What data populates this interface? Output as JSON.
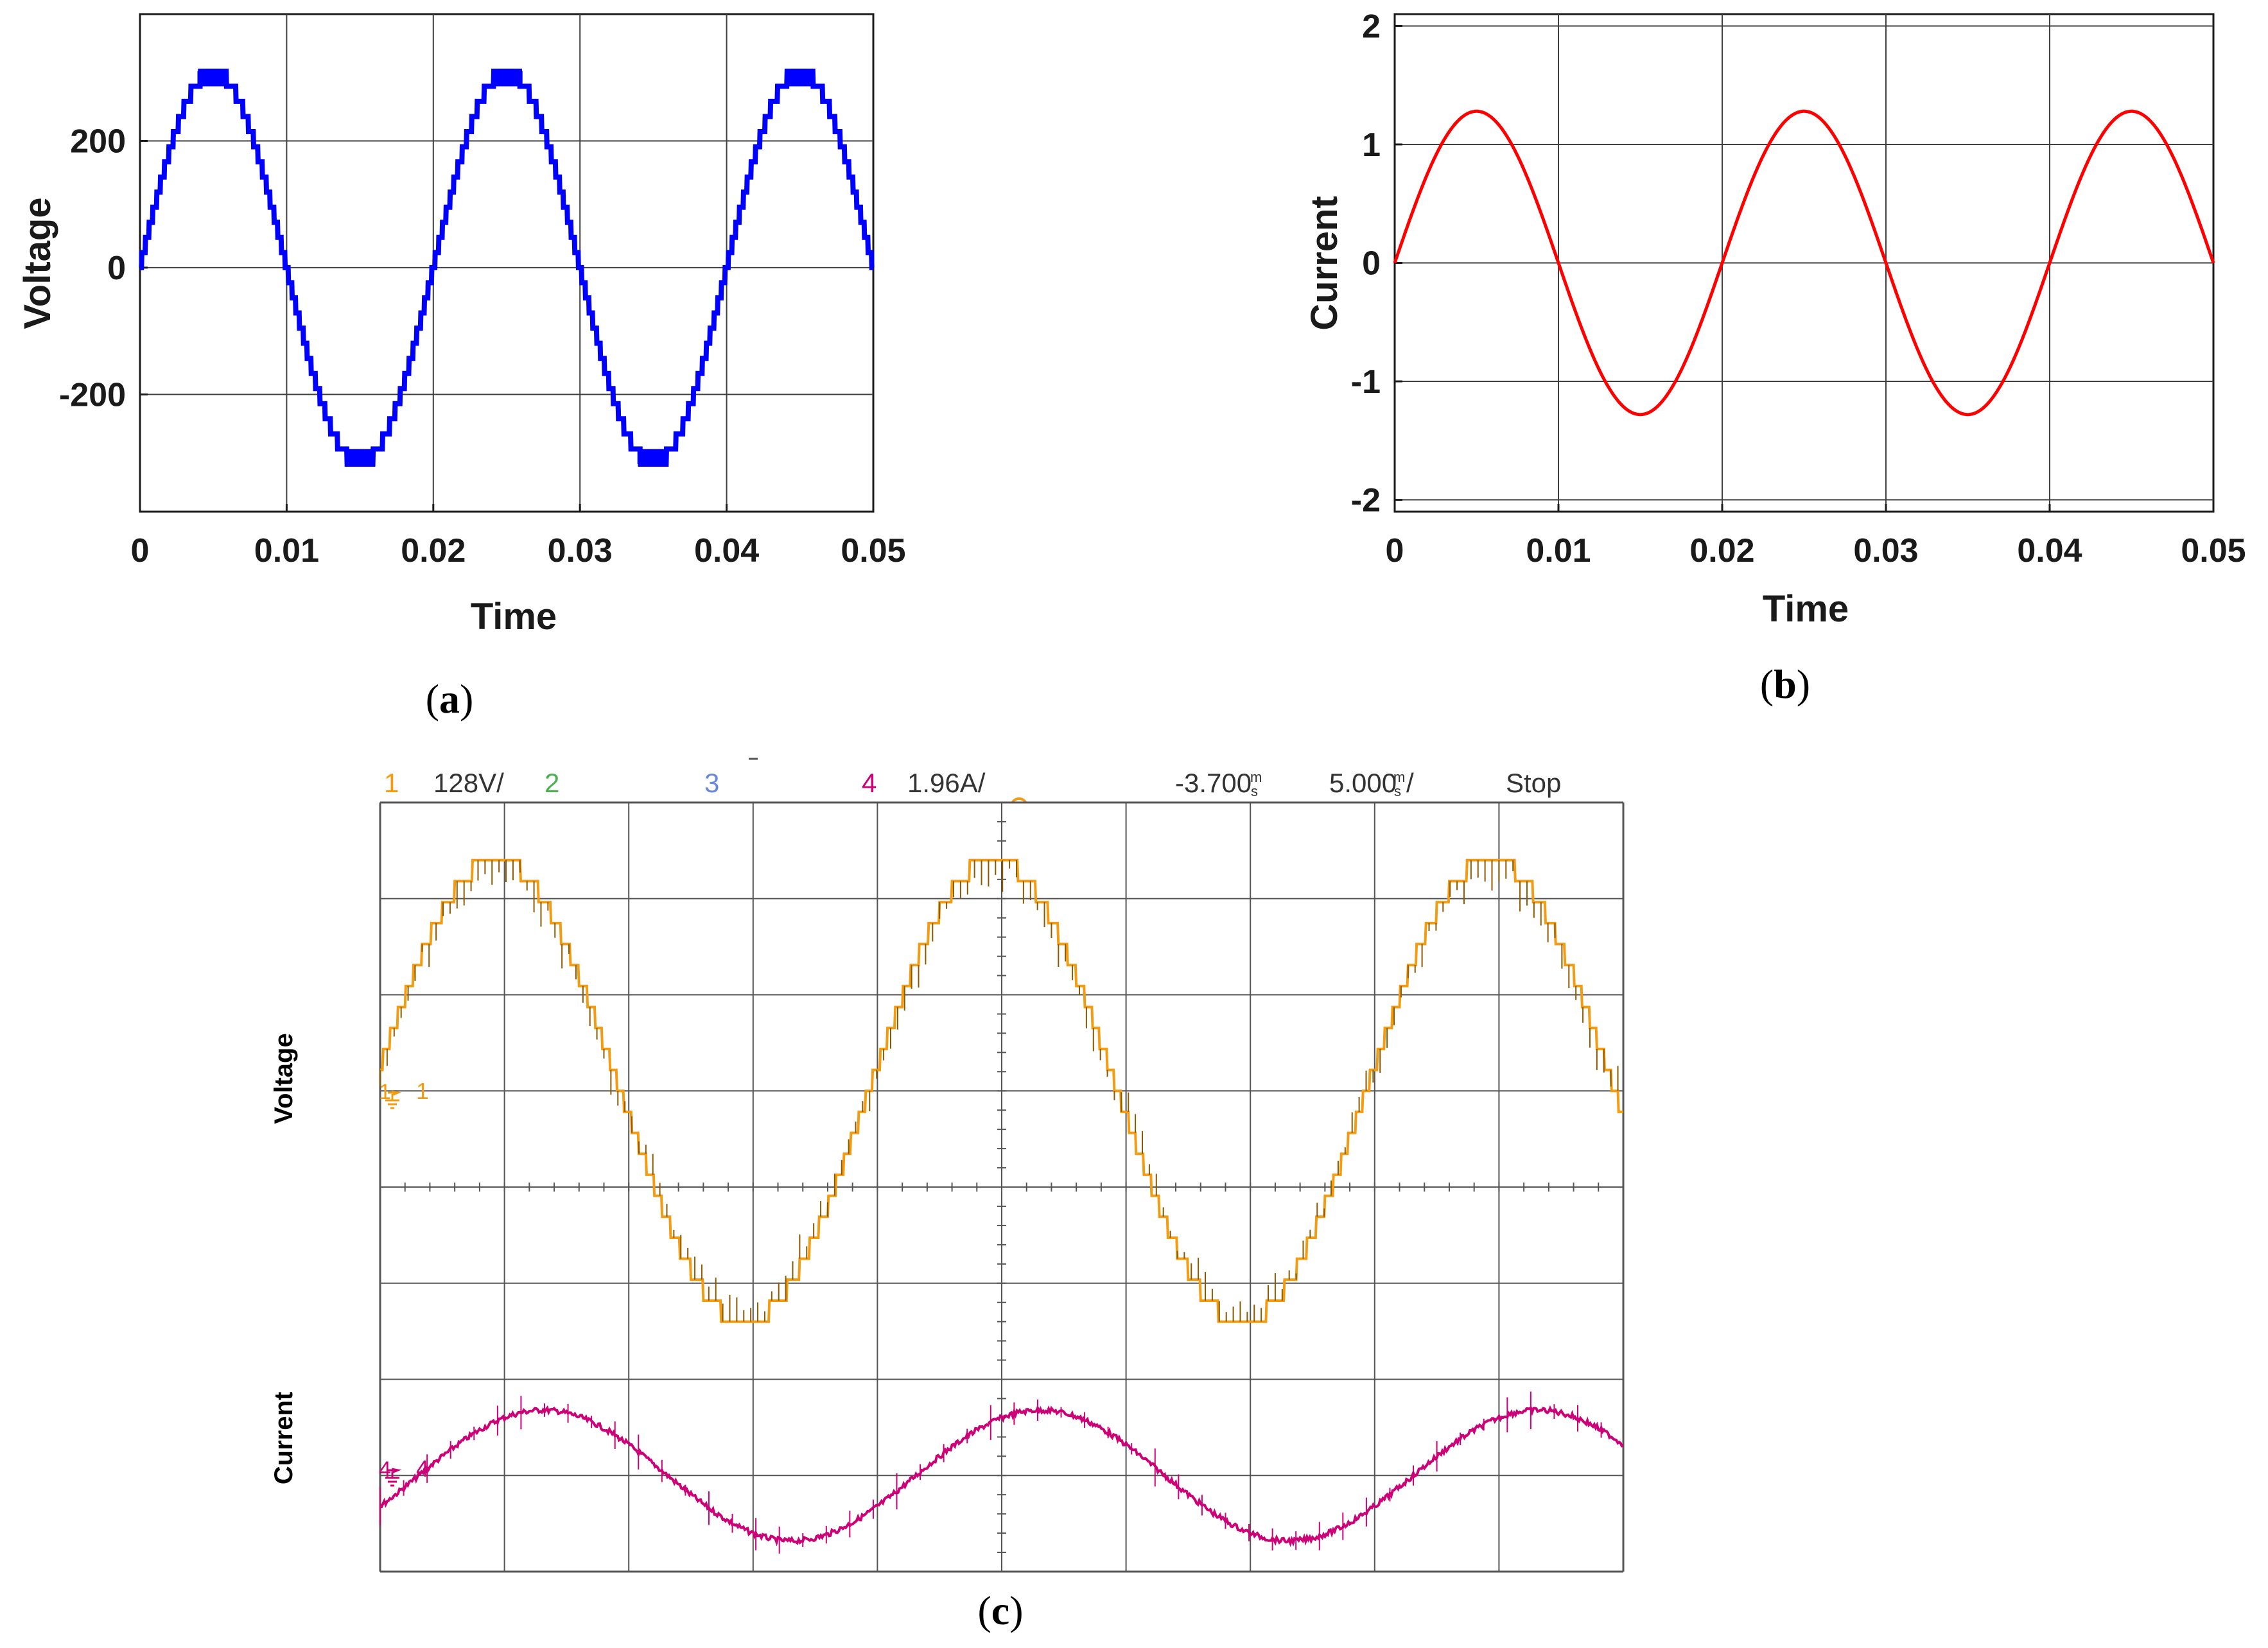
{
  "panels": {
    "a": {
      "caption_pre": "(",
      "caption_letter": "a",
      "caption_post": ")"
    },
    "b": {
      "caption_pre": "(",
      "caption_letter": "b",
      "caption_post": ")"
    },
    "c": {
      "caption_pre": "(",
      "caption_letter": "c",
      "caption_post": ")"
    }
  },
  "colors": {
    "voltage_sim": "#0000ff",
    "current_sim": "#ff0000",
    "ch1": "#f39c12",
    "ch1_dark": "#8a5a00",
    "ch2": "#4caf50",
    "ch3": "#6688dd",
    "ch4": "#cc0077",
    "grid": "#555555"
  },
  "chart_data": [
    {
      "type": "line",
      "panel": "a",
      "xlabel": "Time",
      "ylabel": "Voltage",
      "xlim": [
        0,
        0.05
      ],
      "ylim": [
        -385,
        400
      ],
      "xticks": [
        0,
        0.01,
        0.02,
        0.03,
        0.04,
        0.05
      ],
      "xtick_labels": [
        "0",
        "0.01",
        "0.02",
        "0.03",
        "0.04",
        "0.05"
      ],
      "yticks": [
        -200,
        0,
        200
      ],
      "ytick_labels": [
        "-200",
        "0",
        "200"
      ],
      "grid": true,
      "series": [
        {
          "frequency_hz": 50,
          "amplitude": 310,
          "steps_per_quarter": 13,
          "x_range": [
            0,
            0.05
          ]
        }
      ]
    },
    {
      "type": "line",
      "panel": "b",
      "xlabel": "Time",
      "ylabel": "Current",
      "xlim": [
        0,
        0.05
      ],
      "ylim": [
        -2.1,
        2.1
      ],
      "xticks": [
        0,
        0.01,
        0.02,
        0.03,
        0.04,
        0.05
      ],
      "xtick_labels": [
        "0",
        "0.01",
        "0.02",
        "0.03",
        "0.04",
        "0.05"
      ],
      "yticks": [
        -2,
        -1,
        0,
        1,
        2
      ],
      "ytick_labels": [
        "-2",
        "-1",
        "0",
        "1",
        "2"
      ],
      "grid": true,
      "series": [
        {
          "frequency_hz": 50,
          "amplitude": 1.28,
          "x_range": [
            0,
            0.05
          ]
        }
      ]
    },
    {
      "type": "line",
      "panel": "c",
      "header": {
        "ch1_num": "1",
        "ch1_scale": "128V/",
        "ch2_num": "2",
        "ch3_num": "3",
        "ch4_num": "4",
        "ch4_scale": "1.96A/",
        "trig_offset": "-3.700",
        "offset_unit_top": "m",
        "offset_unit_bot": "s",
        "timebase": "5.000",
        "tb_unit_top": "m",
        "tb_unit_bot": "s",
        "tb_slash": "/",
        "status": "Stop"
      },
      "side_labels": {
        "voltage": "Voltage",
        "current": "Current"
      },
      "markers": {
        "ch1": "1",
        "ch4": "4"
      },
      "divisions": {
        "x": 10,
        "y": 8
      },
      "series": [
        {
          "channel": 1,
          "amplitude_div": 2.4,
          "offset_div": 0,
          "cycles": 2.5,
          "phase_deg": 6
        },
        {
          "channel": 4,
          "amplitude_div": 0.68,
          "offset_div": 0,
          "cycles": 2.5,
          "phase_deg": -28
        }
      ]
    }
  ]
}
